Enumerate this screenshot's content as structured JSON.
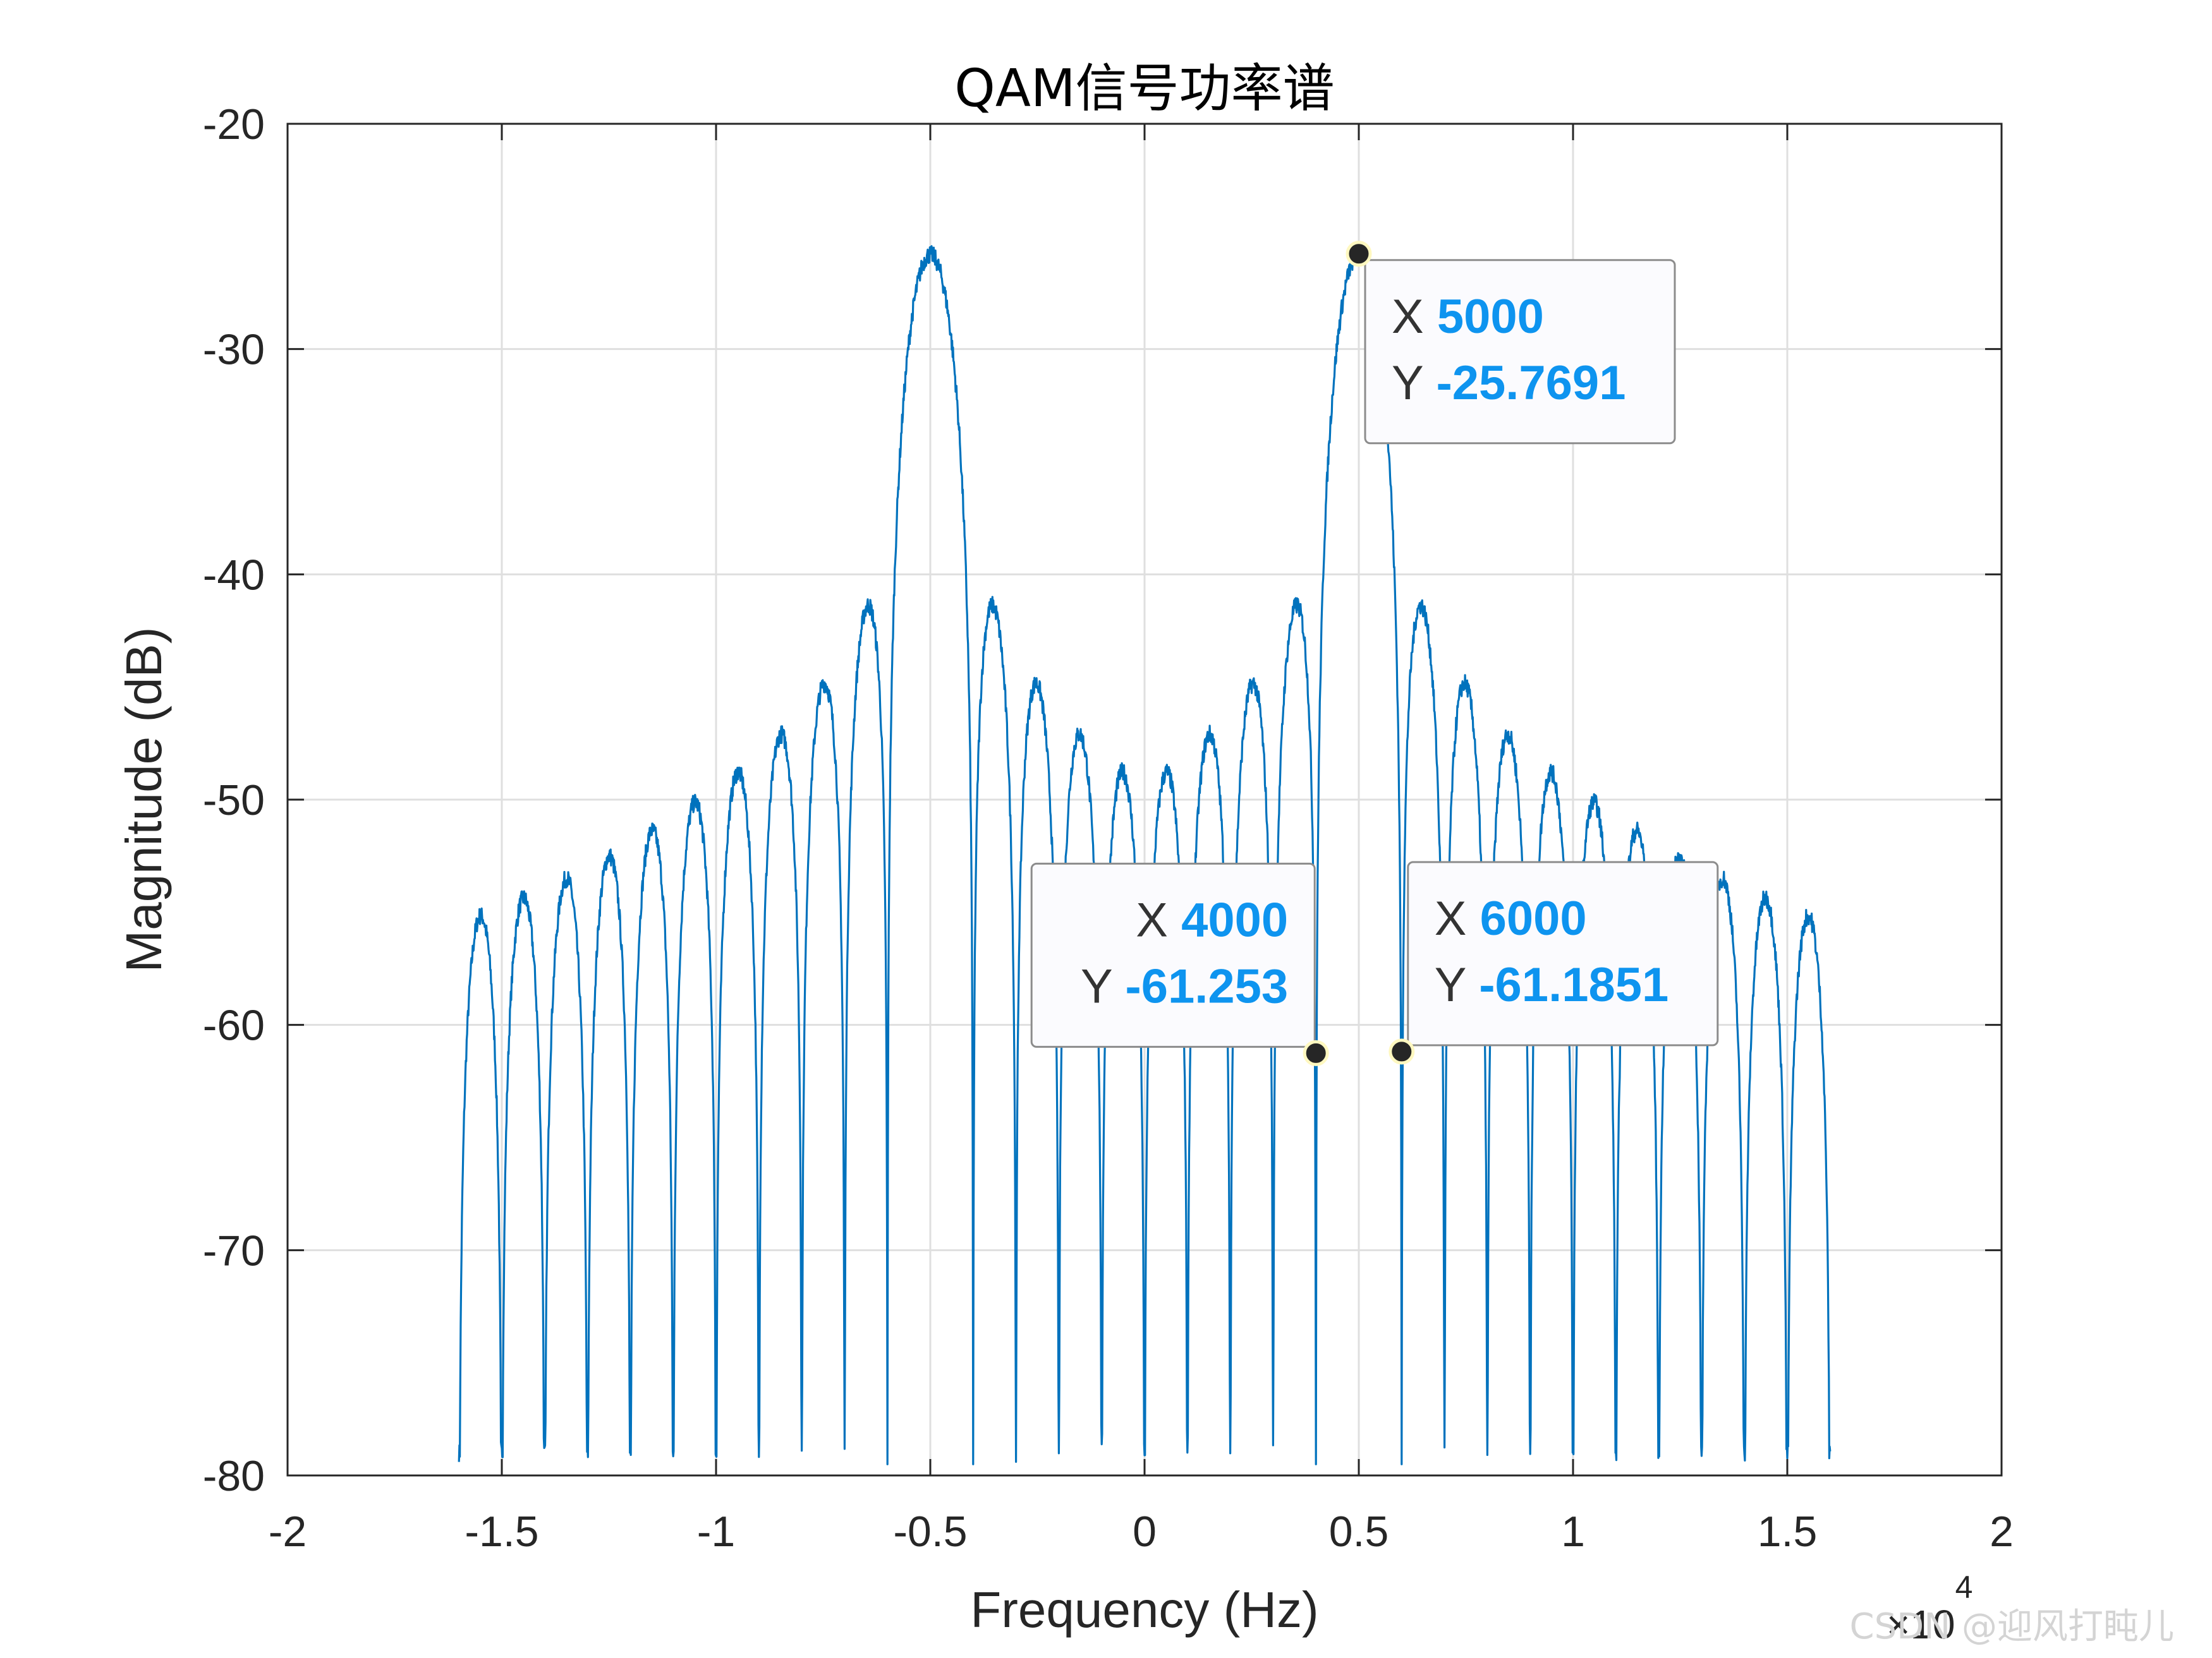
{
  "chart_data": {
    "type": "line",
    "title": "QAM信号功率谱",
    "xlabel": "Frequency (Hz)",
    "ylabel": "Magnitude (dB)",
    "x_exponent_base": "×10",
    "x_exponent_power": "4",
    "xlim": [
      -20000,
      20000
    ],
    "ylim": [
      -80,
      -20
    ],
    "x_ticks": [
      -20000,
      -15000,
      -10000,
      -5000,
      0,
      5000,
      10000,
      15000,
      20000
    ],
    "x_tick_labels": [
      "-2",
      "-1.5",
      "-1",
      "-0.5",
      "0",
      "0.5",
      "1",
      "1.5",
      "2"
    ],
    "y_ticks": [
      -80,
      -70,
      -60,
      -50,
      -40,
      -30,
      -20
    ],
    "y_tick_labels": [
      "-80",
      "-70",
      "-60",
      "-50",
      "-40",
      "-30",
      "-20"
    ],
    "grid": true,
    "series_color": "#0072bd",
    "series": [
      {
        "x_range": [
          -16000,
          16000
        ],
        "carriers": [
          -5000,
          5000
        ],
        "symbol_rate": 1000,
        "peak_db": -25.8,
        "floor_db": -55
      }
    ],
    "datatips": [
      {
        "x_key": "X",
        "x_value": "5000",
        "y_key": "Y",
        "y_value": "-25.7691",
        "x": 5000,
        "y": -25.7691,
        "align": "left"
      },
      {
        "x_key": "X",
        "x_value": "4000",
        "y_key": "Y",
        "y_value": "-61.253",
        "x": 4000,
        "y": -61.253,
        "align": "right"
      },
      {
        "x_key": "X",
        "x_value": "6000",
        "y_key": "Y",
        "y_value": "-61.1851",
        "x": 6000,
        "y": -61.1851,
        "align": "left"
      }
    ]
  },
  "watermark": "CSDN @迎风打盹儿"
}
